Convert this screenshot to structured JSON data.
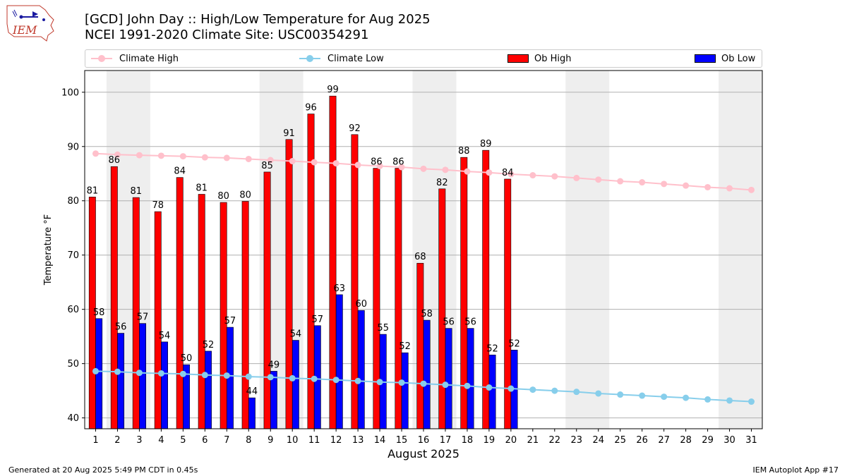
{
  "header": {
    "logo_text": "IEM",
    "title": "[GCD] John Day :: High/Low Temperature for Aug 2025",
    "subtitle": "NCEI 1991-2020 Climate Site: USC00354291"
  },
  "legend": {
    "climate_high": "Climate High",
    "climate_low": "Climate Low",
    "ob_high": "Ob High",
    "ob_low": "Ob Low"
  },
  "footer": {
    "generated": "Generated at 20 Aug 2025 5:49 PM CDT in 0.45s",
    "app": "IEM Autoplot App #17"
  },
  "colors": {
    "ob_high": "#ff0000",
    "ob_low": "#0000ff",
    "climate_high": "#ffc0cb",
    "climate_low": "#87ceeb",
    "weekend_band": "#eeeeee"
  },
  "chart_data": {
    "type": "bar",
    "xlabel": "August 2025",
    "ylabel": "Temperature °F",
    "ylim": [
      38,
      104
    ],
    "yticks": [
      40,
      50,
      60,
      70,
      80,
      90,
      100
    ],
    "xlim": [
      0.5,
      31.5
    ],
    "days": [
      1,
      2,
      3,
      4,
      5,
      6,
      7,
      8,
      9,
      10,
      11,
      12,
      13,
      14,
      15,
      16,
      17,
      18,
      19,
      20,
      21,
      22,
      23,
      24,
      25,
      26,
      27,
      28,
      29,
      30,
      31
    ],
    "shaded_days": [
      2,
      9,
      16,
      23,
      30
    ],
    "grid": "horizontal",
    "legend_position": "top",
    "series": [
      {
        "name": "Ob High",
        "type": "bar",
        "values": [
          80.7,
          86.3,
          80.6,
          78.0,
          84.3,
          81.2,
          79.7,
          79.9,
          85.3,
          91.3,
          96.0,
          99.3,
          92.2,
          86.0,
          86.0,
          68.5,
          82.2,
          88.0,
          89.3,
          84.0
        ]
      },
      {
        "name": "Ob Low",
        "type": "bar",
        "values": [
          58.3,
          55.6,
          57.4,
          54.0,
          49.8,
          52.3,
          56.7,
          43.7,
          48.6,
          54.3,
          57.0,
          62.7,
          59.8,
          55.4,
          52.0,
          58.0,
          56.5,
          56.5,
          51.6,
          52.5
        ]
      },
      {
        "name": "Climate High",
        "type": "line",
        "values": [
          88.7,
          88.5,
          88.4,
          88.3,
          88.2,
          88.0,
          87.9,
          87.7,
          87.5,
          87.3,
          87.1,
          86.9,
          86.6,
          86.4,
          86.2,
          85.9,
          85.7,
          85.4,
          85.2,
          84.9,
          84.7,
          84.5,
          84.2,
          83.9,
          83.6,
          83.4,
          83.1,
          82.8,
          82.5,
          82.3,
          82.0
        ]
      },
      {
        "name": "Climate Low",
        "type": "line",
        "values": [
          48.6,
          48.5,
          48.3,
          48.2,
          48.1,
          47.9,
          47.8,
          47.6,
          47.5,
          47.3,
          47.2,
          47.0,
          46.8,
          46.6,
          46.5,
          46.3,
          46.1,
          45.9,
          45.6,
          45.4,
          45.2,
          45.0,
          44.8,
          44.5,
          44.3,
          44.1,
          43.9,
          43.7,
          43.4,
          43.2,
          43.0
        ]
      }
    ],
    "high_labels": [
      "81",
      "86",
      "81",
      "78",
      "84",
      "81",
      "80",
      "80",
      "85",
      "91",
      "96",
      "99",
      "92",
      "86",
      "86",
      "68",
      "82",
      "88",
      "89",
      "84"
    ],
    "low_labels": [
      "58",
      "56",
      "57",
      "54",
      "50",
      "52",
      "57",
      "44",
      "49",
      "54",
      "57",
      "63",
      "60",
      "55",
      "52",
      "58",
      "56",
      "56",
      "52",
      "52"
    ]
  }
}
